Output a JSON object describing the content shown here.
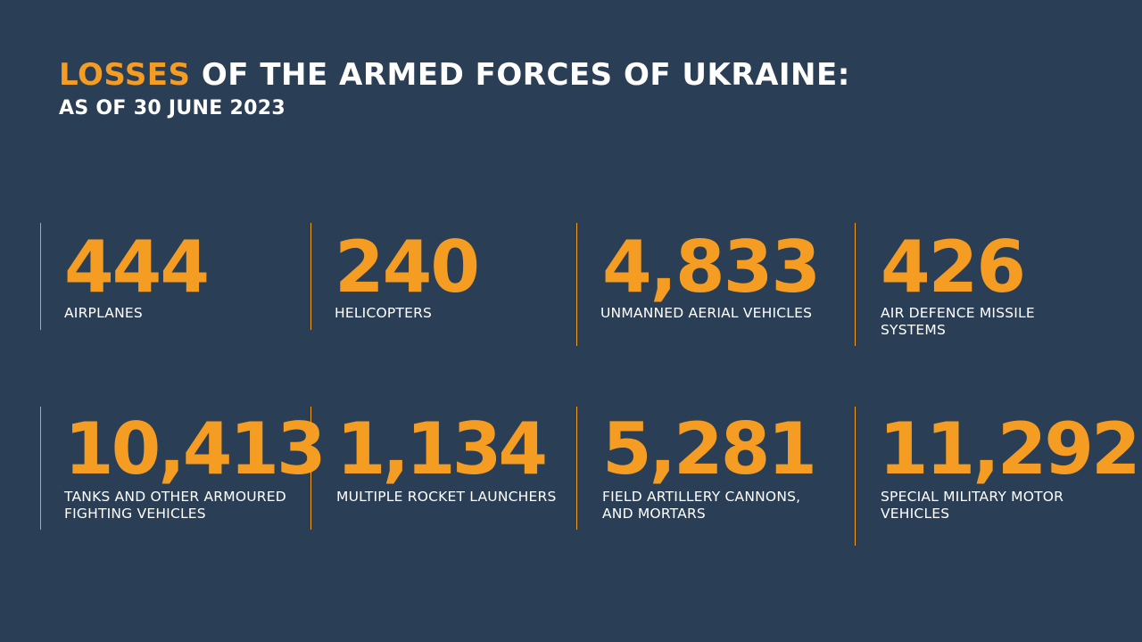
{
  "header": {
    "title_accent": "LOSSES",
    "title_rest": " OF THE ARMED FORCES OF UKRAINE:",
    "subtitle": "AS OF 30 JUNE 2023"
  },
  "colors": {
    "background": "#2a3e55",
    "accent": "#f59d22",
    "text": "#ffffff"
  },
  "stats": [
    {
      "value": "444",
      "label_line1": "AIRPLANES",
      "label_line2": ""
    },
    {
      "value": "240",
      "label_line1": "HELICOPTERS",
      "label_line2": ""
    },
    {
      "value": "4,833",
      "label_line1": "UNMANNED AERIAL VEHICLES",
      "label_line2": ""
    },
    {
      "value": "426",
      "label_line1": "AIR DEFENCE MISSILE",
      "label_line2": "SYSTEMS"
    },
    {
      "value": "10,413",
      "label_line1": "TANKS AND OTHER ARMOURED",
      "label_line2": "FIGHTING VEHICLES"
    },
    {
      "value": "1,134",
      "label_line1": "MULTIPLE ROCKET LAUNCHERS",
      "label_line2": ""
    },
    {
      "value": "5,281",
      "label_line1": "FIELD ARTILLERY CANNONS,",
      "label_line2": "AND MORTARS"
    },
    {
      "value": "11,292",
      "label_line1": "SPECIAL MILITARY MOTOR",
      "label_line2": "VEHICLES"
    }
  ]
}
